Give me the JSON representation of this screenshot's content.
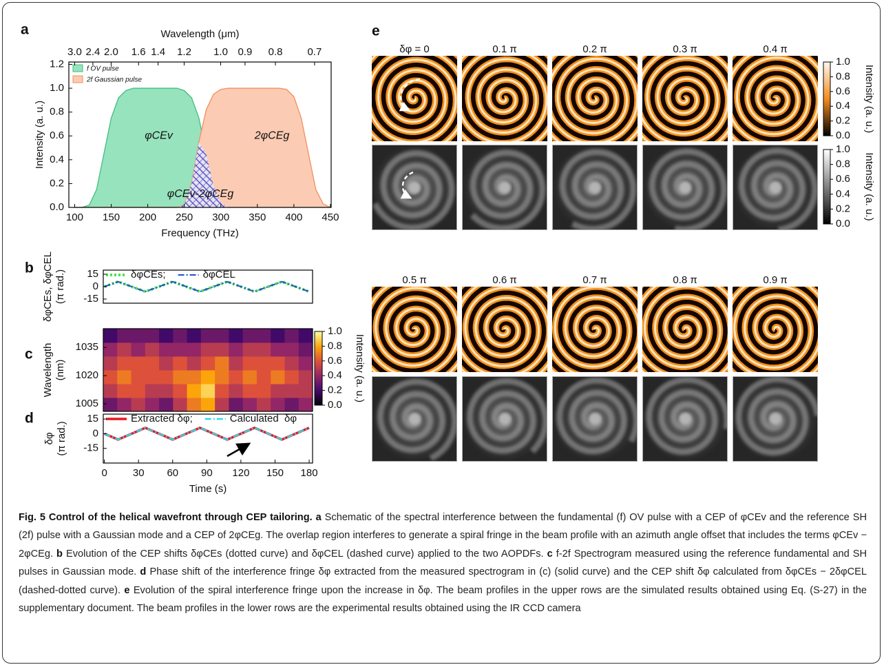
{
  "chart_data": [
    {
      "panel": "a",
      "type": "area",
      "x2_label": "Wavelength (μm)",
      "xlabel": "Frequency (THz)",
      "ylabel": "Intensity (a. u.)",
      "x": [
        100,
        110,
        120,
        130,
        140,
        150,
        160,
        170,
        180,
        190,
        200,
        210,
        220,
        230,
        240,
        250,
        260,
        270,
        280,
        290,
        300,
        310,
        320,
        330,
        340,
        350,
        360,
        370,
        380,
        390,
        400,
        410,
        420,
        430,
        440,
        450
      ],
      "series": [
        {
          "name": "f OV pulse",
          "color": "#97e3bd",
          "edge": "#3fbf7f",
          "values": [
            0,
            0,
            0.02,
            0.15,
            0.45,
            0.75,
            0.92,
            0.98,
            1,
            1,
            1,
            1,
            1,
            1,
            1,
            0.98,
            0.92,
            0.75,
            0.45,
            0.18,
            0.04,
            0,
            0,
            0,
            0,
            0,
            0,
            0,
            0,
            0,
            0,
            0,
            0,
            0,
            0,
            0
          ]
        },
        {
          "name": "2f Gaussian pulse",
          "color": "#fccbb3",
          "edge": "#f0905e",
          "values": [
            0,
            0,
            0,
            0,
            0,
            0,
            0,
            0,
            0,
            0,
            0,
            0,
            0,
            0,
            0,
            0.02,
            0.2,
            0.55,
            0.82,
            0.95,
            0.99,
            1,
            1,
            1,
            1,
            1,
            1,
            1,
            1,
            0.99,
            0.93,
            0.75,
            0.45,
            0.15,
            0.03,
            0
          ]
        }
      ],
      "overlap_color": "#3b3bc8",
      "xlim": [
        92,
        451
      ],
      "xticks": [
        100,
        150,
        200,
        250,
        300,
        350,
        400,
        450
      ],
      "x2ticks": [
        {
          "value": 3.0,
          "label": "3.0"
        },
        2.4,
        {
          "value": 2.0,
          "label": "2.0"
        },
        1.6,
        1.4,
        1.2,
        {
          "value": 1.0,
          "label": "1.0"
        },
        0.9,
        0.8,
        0.7
      ],
      "ylim": [
        0,
        1.22
      ],
      "yticks": [
        {
          "value": 0,
          "label": "0.0"
        },
        0.2,
        0.4,
        0.6,
        0.8,
        {
          "value": 1,
          "label": "1.0"
        },
        1.2
      ],
      "annotations": [
        "φCEv",
        "2φCEg",
        "φCEv-2φCEg"
      ],
      "legend": "upper left"
    },
    {
      "panel": "b",
      "type": "line",
      "ylabel": [
        "δφCEs, δφCEL",
        "(π rad.)"
      ],
      "x": [
        0,
        12,
        36,
        60,
        84,
        108,
        132,
        156,
        180
      ],
      "series": [
        {
          "name": "δφCEs;",
          "color": "#4ee04e",
          "style": "dotted",
          "width": 4,
          "values": [
            0,
            6,
            -6,
            6,
            -6,
            6,
            -6,
            6,
            -6
          ]
        },
        {
          "name": "δφCEL",
          "color": "#1f4fd0",
          "style": "dashdot",
          "width": 2,
          "values": [
            0,
            6,
            -6,
            6,
            -6,
            6,
            -6,
            6,
            -6
          ]
        }
      ],
      "xlim": [
        -1,
        183
      ],
      "ylim": [
        -20,
        20
      ],
      "yticks": [
        15,
        0,
        -15
      ],
      "legend": "upper left"
    },
    {
      "panel": "c",
      "type": "heatmap",
      "ylabel": [
        "Wavelength",
        "(nm)"
      ],
      "colormap": "inferno",
      "z": [
        [
          0.3,
          0.4,
          0.5,
          0.4,
          0.3,
          0.5,
          0.7,
          0.8,
          0.5,
          0.3,
          0.4,
          0.5,
          0.4,
          0.3,
          0.4
        ],
        [
          0.5,
          0.6,
          0.6,
          0.5,
          0.5,
          0.6,
          0.8,
          0.9,
          0.6,
          0.5,
          0.6,
          0.6,
          0.5,
          0.5,
          0.5
        ],
        [
          0.6,
          0.7,
          0.6,
          0.6,
          0.6,
          0.7,
          0.7,
          0.8,
          0.7,
          0.6,
          0.7,
          0.6,
          0.7,
          0.6,
          0.5
        ],
        [
          0.5,
          0.6,
          0.6,
          0.6,
          0.5,
          0.6,
          0.5,
          0.6,
          0.7,
          0.5,
          0.6,
          0.6,
          0.6,
          0.5,
          0.4
        ],
        [
          0.4,
          0.5,
          0.4,
          0.5,
          0.4,
          0.4,
          0.4,
          0.5,
          0.5,
          0.4,
          0.5,
          0.5,
          0.4,
          0.4,
          0.3
        ],
        [
          0.2,
          0.3,
          0.3,
          0.3,
          0.2,
          0.3,
          0.2,
          0.3,
          0.3,
          0.2,
          0.3,
          0.3,
          0.2,
          0.3,
          0.2
        ]
      ],
      "xlim": [
        -1,
        183
      ],
      "ylim": [
        1001,
        1045
      ],
      "yticks": [
        1005,
        1020,
        1035
      ],
      "clim": [
        0,
        1
      ],
      "colorbar_ticks": [
        {
          "value": 1,
          "label": "1.0"
        },
        0.8,
        0.6,
        0.4,
        0.2,
        {
          "value": 0,
          "label": "0.0"
        }
      ],
      "colorbar_label": "Intensity (a. u.)"
    },
    {
      "panel": "d",
      "type": "line",
      "ylabel": [
        "δφ",
        "(π rad.)"
      ],
      "xlabel": "Time (s)",
      "x": [
        0,
        12,
        36,
        60,
        84,
        108,
        132,
        156,
        180
      ],
      "series": [
        {
          "name": "Extracted δφ;",
          "color": "#e8141e",
          "style": "solid",
          "width": 3.5,
          "values": [
            0,
            -6,
            6,
            -6,
            6,
            -6,
            6,
            -6,
            6
          ]
        },
        {
          "name": "Calculated  δφ",
          "color": "#35d4e8",
          "style": "dashdot",
          "width": 2.5,
          "values": [
            0,
            -6,
            6,
            -6,
            6,
            -6,
            6,
            -6,
            6
          ]
        }
      ],
      "xlim": [
        -1,
        183
      ],
      "xticks": [
        0,
        30,
        60,
        90,
        120,
        150,
        180
      ],
      "ylim": [
        -30,
        20
      ],
      "yticks": [
        15,
        0,
        -15
      ],
      "legend": "upper left"
    }
  ],
  "panel_e": {
    "label": "e",
    "phases": [
      "δφ = 0",
      "0.1 π",
      "0.2 π",
      "0.3 π",
      "0.4 π",
      "0.5 π",
      "0.6 π",
      "0.7 π",
      "0.8 π",
      "0.9 π"
    ],
    "colorbars": [
      {
        "label": "Intensity (a. u.)",
        "clim": [
          0,
          1
        ],
        "colors": [
          "#000000",
          "#f28a1e",
          "#fff6ec"
        ],
        "ticks": [
          {
            "value": 1,
            "label": "1.0"
          },
          0.8,
          0.6,
          0.4,
          0.2,
          {
            "value": 0,
            "label": "0.0"
          }
        ]
      },
      {
        "label": "Intensity (a. u.)",
        "clim": [
          0,
          1
        ],
        "colors": [
          "#000000",
          "#ffffff"
        ],
        "ticks": [
          {
            "value": 1,
            "label": "1.0"
          },
          0.8,
          0.6,
          0.4,
          0.2,
          {
            "value": 0,
            "label": "0.0"
          }
        ]
      }
    ]
  },
  "caption": {
    "title": "Fig. 5 Control of the helical wavefront through CEP tailoring.",
    "parts": [
      {
        "label": "a",
        "text": "Schematic of the spectral interference between the fundamental (f) OV pulse with a CEP of φCEv and the reference SH (2f) pulse with a Gaussian mode and a CEP of 2φCEg. The overlap region interferes to generate a spiral fringe in the beam profile with an azimuth angle offset that includes the terms φCEv − 2φCEg."
      },
      {
        "label": "b",
        "text": "Evolution of the CEP shifts δφCEs (dotted curve) and δφCEL (dashed curve) applied to the two AOPDFs."
      },
      {
        "label": "c",
        "text": "f-2f Spectrogram measured using the reference fundamental and SH pulses in Gaussian mode."
      },
      {
        "label": "d",
        "text": "Phase shift of the interference fringe δφ extracted from the measured spectrogram in (c) (solid curve) and the CEP shift δφ calculated from δφCEs − 2δφCEL (dashed-dotted curve)."
      },
      {
        "label": "e",
        "text": "Evolution of the spiral interference fringe upon the increase in δφ. The beam profiles in the upper rows are the simulated results obtained using Eq. (S-27) in the supplementary document. The beam profiles in the lower rows are the experimental results obtained using the IR CCD camera"
      }
    ]
  }
}
